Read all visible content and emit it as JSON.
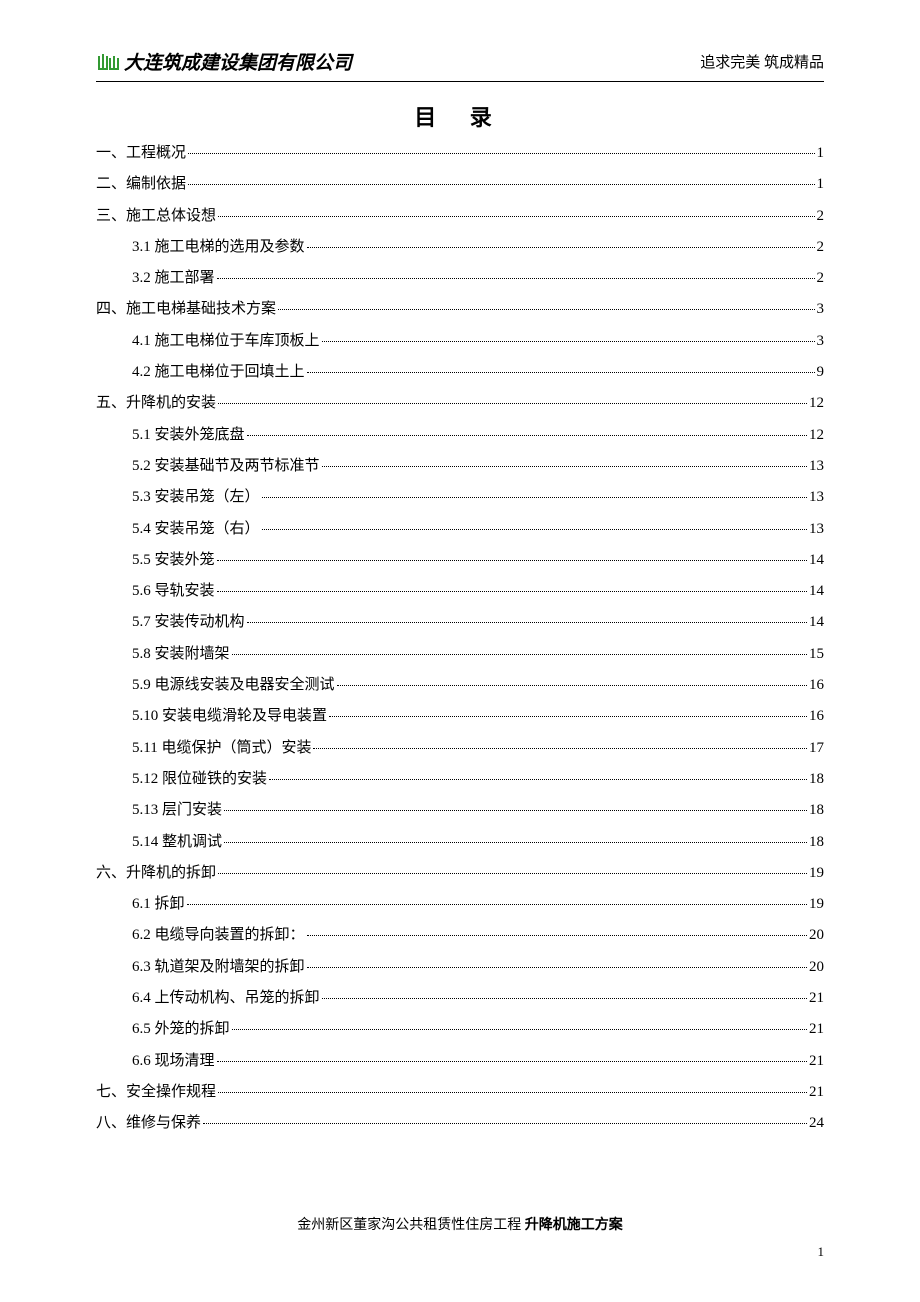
{
  "header": {
    "company": "大连筑成建设集团有限公司",
    "slogan": "追求完美 筑成精品"
  },
  "title": "目 录",
  "toc": [
    {
      "level": 1,
      "label": "一、工程概况",
      "page": "1"
    },
    {
      "level": 1,
      "label": "二、编制依据",
      "page": "1"
    },
    {
      "level": 1,
      "label": "三、施工总体设想",
      "page": "2"
    },
    {
      "level": 2,
      "label": "3.1 施工电梯的选用及参数",
      "page": "2"
    },
    {
      "level": 2,
      "label": "3.2 施工部署",
      "page": "2"
    },
    {
      "level": 1,
      "label": "四、施工电梯基础技术方案",
      "page": "3"
    },
    {
      "level": 2,
      "label": "4.1 施工电梯位于车库顶板上",
      "page": "3"
    },
    {
      "level": 2,
      "label": "4.2 施工电梯位于回填土上",
      "page": "9"
    },
    {
      "level": 1,
      "label": "五、升降机的安装",
      "page": "12"
    },
    {
      "level": 2,
      "label": "5.1 安装外笼底盘",
      "page": "12"
    },
    {
      "level": 2,
      "label": "5.2 安装基础节及两节标准节",
      "page": "13"
    },
    {
      "level": 2,
      "label": "5.3 安装吊笼（左）",
      "page": "13"
    },
    {
      "level": 2,
      "label": "5.4 安装吊笼（右）",
      "page": "13"
    },
    {
      "level": 2,
      "label": "5.5 安装外笼",
      "page": "14"
    },
    {
      "level": 2,
      "label": "5.6 导轨安装",
      "page": "14"
    },
    {
      "level": 2,
      "label": "5.7 安装传动机构",
      "page": "14"
    },
    {
      "level": 2,
      "label": "5.8 安装附墙架",
      "page": "15"
    },
    {
      "level": 2,
      "label": "5.9 电源线安装及电器安全测试",
      "page": "16"
    },
    {
      "level": 2,
      "label": "5.10 安装电缆滑轮及导电装置",
      "page": "16"
    },
    {
      "level": 2,
      "label": "5.11 电缆保护（筒式）安装",
      "page": "17"
    },
    {
      "level": 2,
      "label": "5.12 限位碰铁的安装",
      "page": "18"
    },
    {
      "level": 2,
      "label": "5.13 层门安装",
      "page": "18"
    },
    {
      "level": 2,
      "label": "5.14 整机调试",
      "page": "18"
    },
    {
      "level": 1,
      "label": "六、升降机的拆卸",
      "page": "19"
    },
    {
      "level": 2,
      "label": "6.1 拆卸",
      "page": "19"
    },
    {
      "level": 2,
      "label": "6.2 电缆导向装置的拆卸：",
      "page": "20"
    },
    {
      "level": 2,
      "label": "6.3 轨道架及附墙架的拆卸",
      "page": "20"
    },
    {
      "level": 2,
      "label": "6.4 上传动机构、吊笼的拆卸",
      "page": "21"
    },
    {
      "level": 2,
      "label": "6.5 外笼的拆卸",
      "page": "21"
    },
    {
      "level": 2,
      "label": "6.6 现场清理",
      "page": "21"
    },
    {
      "level": 1,
      "label": "七、安全操作规程",
      "page": "21"
    },
    {
      "level": 1,
      "label": "八、维修与保养",
      "page": "24"
    }
  ],
  "footer": {
    "prefix": "金州新区董家沟公共租赁性住房工程",
    "bold": "升降机施工方案"
  },
  "pageNumber": "1",
  "colors": {
    "text": "#000000",
    "background": "#ffffff",
    "logo_green": "#339933"
  }
}
